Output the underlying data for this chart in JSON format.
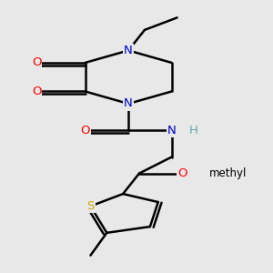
{
  "bg_color": "#e8e8e8",
  "bond_color": "#000000",
  "atom_colors": {
    "N": "#0000cc",
    "O": "#ff0000",
    "S": "#ccaa00",
    "Cl": "#44aa00",
    "C": "#000000",
    "H": "#66aaaa"
  },
  "figsize": [
    3.0,
    3.0
  ],
  "dpi": 100
}
